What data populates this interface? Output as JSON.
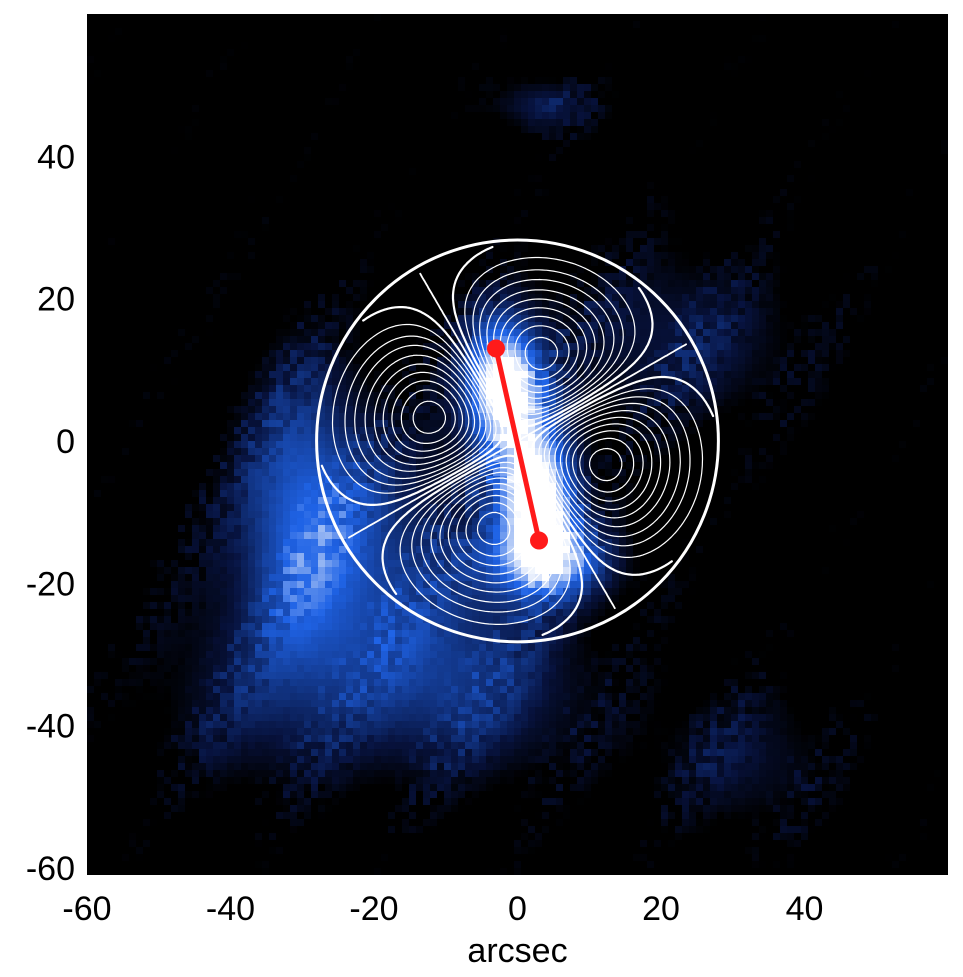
{
  "chart_data": {
    "type": "heatmap",
    "title": "",
    "xlabel": "arcsec",
    "ylabel": "",
    "xlim": [
      -60,
      60
    ],
    "ylim": [
      -61,
      60
    ],
    "xticks": [
      -60,
      -40,
      -20,
      0,
      20,
      40
    ],
    "yticks": [
      -60,
      -40,
      -20,
      0,
      20,
      40
    ],
    "colormap": "black-blue-white",
    "colors": {
      "background": "#000000",
      "low": "#07123d",
      "mid": "#1f63e6",
      "high": "#ffffff",
      "overlay": "#ffffff",
      "marker": "#ff1a1a"
    },
    "emission_features": [
      {
        "name": "north-lobe",
        "center": [
          -2,
          8
        ],
        "sigma": [
          4,
          7
        ],
        "peak": 1.0
      },
      {
        "name": "south-lobe",
        "center": [
          3,
          -8
        ],
        "sigma": [
          4,
          7
        ],
        "peak": 1.0
      },
      {
        "name": "south-extension",
        "center": [
          5,
          -17
        ],
        "sigma": [
          7,
          4
        ],
        "peak": 0.55
      },
      {
        "name": "sw-diffuse-1",
        "center": [
          -22,
          -15
        ],
        "sigma": [
          14,
          14
        ],
        "peak": 0.42
      },
      {
        "name": "sw-diffuse-2",
        "center": [
          -8,
          -35
        ],
        "sigma": [
          14,
          10
        ],
        "peak": 0.38
      },
      {
        "name": "west-band",
        "center": [
          -30,
          -8
        ],
        "sigma": [
          6,
          18
        ],
        "peak": 0.35
      },
      {
        "name": "ne-arc",
        "center": [
          22,
          14
        ],
        "sigma": [
          14,
          10
        ],
        "peak": 0.3
      },
      {
        "name": "top-patch",
        "center": [
          4,
          47
        ],
        "sigma": [
          5,
          3
        ],
        "peak": 0.35
      },
      {
        "name": "far-sw",
        "center": [
          -40,
          -38
        ],
        "sigma": [
          10,
          10
        ],
        "peak": 0.2
      },
      {
        "name": "se-patch",
        "center": [
          32,
          -45
        ],
        "sigma": [
          10,
          8
        ],
        "peak": 0.25
      }
    ],
    "circle": {
      "center": [
        0,
        0
      ],
      "radius": 28
    },
    "contours": {
      "pattern": "quadrupole",
      "axis_angle_deg": 75,
      "solid_levels": [
        0.08,
        0.16,
        0.24,
        0.32,
        0.42,
        0.52,
        0.62,
        0.72,
        0.82,
        0.92
      ],
      "dashed_levels": [
        0.0
      ]
    },
    "segment": {
      "start": [
        -3,
        13
      ],
      "end": [
        3,
        -14
      ]
    }
  }
}
